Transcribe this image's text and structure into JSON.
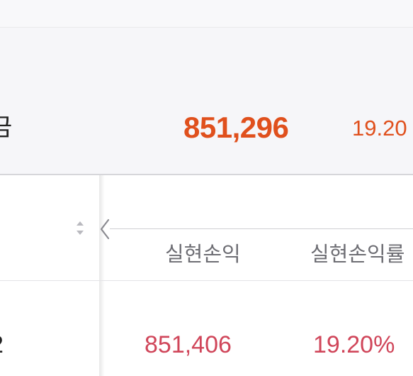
{
  "summary": {
    "label_partial": "금",
    "realized_profit": "851,296",
    "profit_rate_partial": "19.20"
  },
  "table": {
    "headers": [
      "실현손익",
      "실현손익률"
    ],
    "rows": [
      {
        "lead_partial": "2",
        "realized_profit": "851,406",
        "profit_rate": "19.20%"
      }
    ]
  },
  "icons": {
    "sort": "sort-arrows-icon",
    "scroll_left": "chevron-left-icon"
  },
  "colors": {
    "summary_accent": "#e0501d",
    "row_value": "#d0465a",
    "header_text": "#6d6d73"
  }
}
